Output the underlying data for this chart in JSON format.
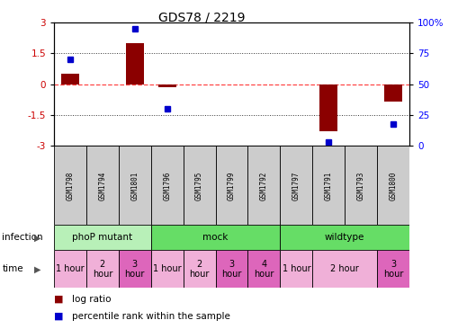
{
  "title": "GDS78 / 2219",
  "samples": [
    "GSM1798",
    "GSM1794",
    "GSM1801",
    "GSM1796",
    "GSM1795",
    "GSM1799",
    "GSM1792",
    "GSM1797",
    "GSM1791",
    "GSM1793",
    "GSM1800"
  ],
  "log_ratio": [
    0.5,
    0.0,
    2.0,
    -0.15,
    0.0,
    0.0,
    0.0,
    0.0,
    -2.3,
    0.0,
    -0.85
  ],
  "percentile": [
    70,
    null,
    95,
    30,
    null,
    null,
    null,
    null,
    3,
    null,
    18
  ],
  "infection_groups": [
    {
      "label": "phoP mutant",
      "start": 0,
      "end": 3,
      "color": "#b8f0b8"
    },
    {
      "label": "mock",
      "start": 3,
      "end": 7,
      "color": "#66dd66"
    },
    {
      "label": "wildtype",
      "start": 7,
      "end": 11,
      "color": "#66dd66"
    }
  ],
  "time_boxes": [
    {
      "start": 0,
      "end": 1,
      "label": "1 hour",
      "color": "#f0b0d8"
    },
    {
      "start": 1,
      "end": 2,
      "label": "2\nhour",
      "color": "#f0b0d8"
    },
    {
      "start": 2,
      "end": 3,
      "label": "3\nhour",
      "color": "#dd66bb"
    },
    {
      "start": 3,
      "end": 4,
      "label": "1 hour",
      "color": "#f0b0d8"
    },
    {
      "start": 4,
      "end": 5,
      "label": "2\nhour",
      "color": "#f0b0d8"
    },
    {
      "start": 5,
      "end": 6,
      "label": "3\nhour",
      "color": "#dd66bb"
    },
    {
      "start": 6,
      "end": 7,
      "label": "4\nhour",
      "color": "#dd66bb"
    },
    {
      "start": 7,
      "end": 8,
      "label": "1 hour",
      "color": "#f0b0d8"
    },
    {
      "start": 8,
      "end": 10,
      "label": "2 hour",
      "color": "#f0b0d8"
    },
    {
      "start": 10,
      "end": 11,
      "label": "3\nhour",
      "color": "#dd66bb"
    }
  ],
  "ylim": [
    -3,
    3
  ],
  "yticks_left": [
    -3,
    -1.5,
    0,
    1.5,
    3
  ],
  "yticks_right": [
    0,
    25,
    50,
    75,
    100
  ],
  "bar_color": "#8B0000",
  "dot_color": "#0000CC",
  "zero_line_color": "#FF4444",
  "dotted_line_color": "#333333",
  "sample_box_color": "#cccccc",
  "n_samples": 11
}
